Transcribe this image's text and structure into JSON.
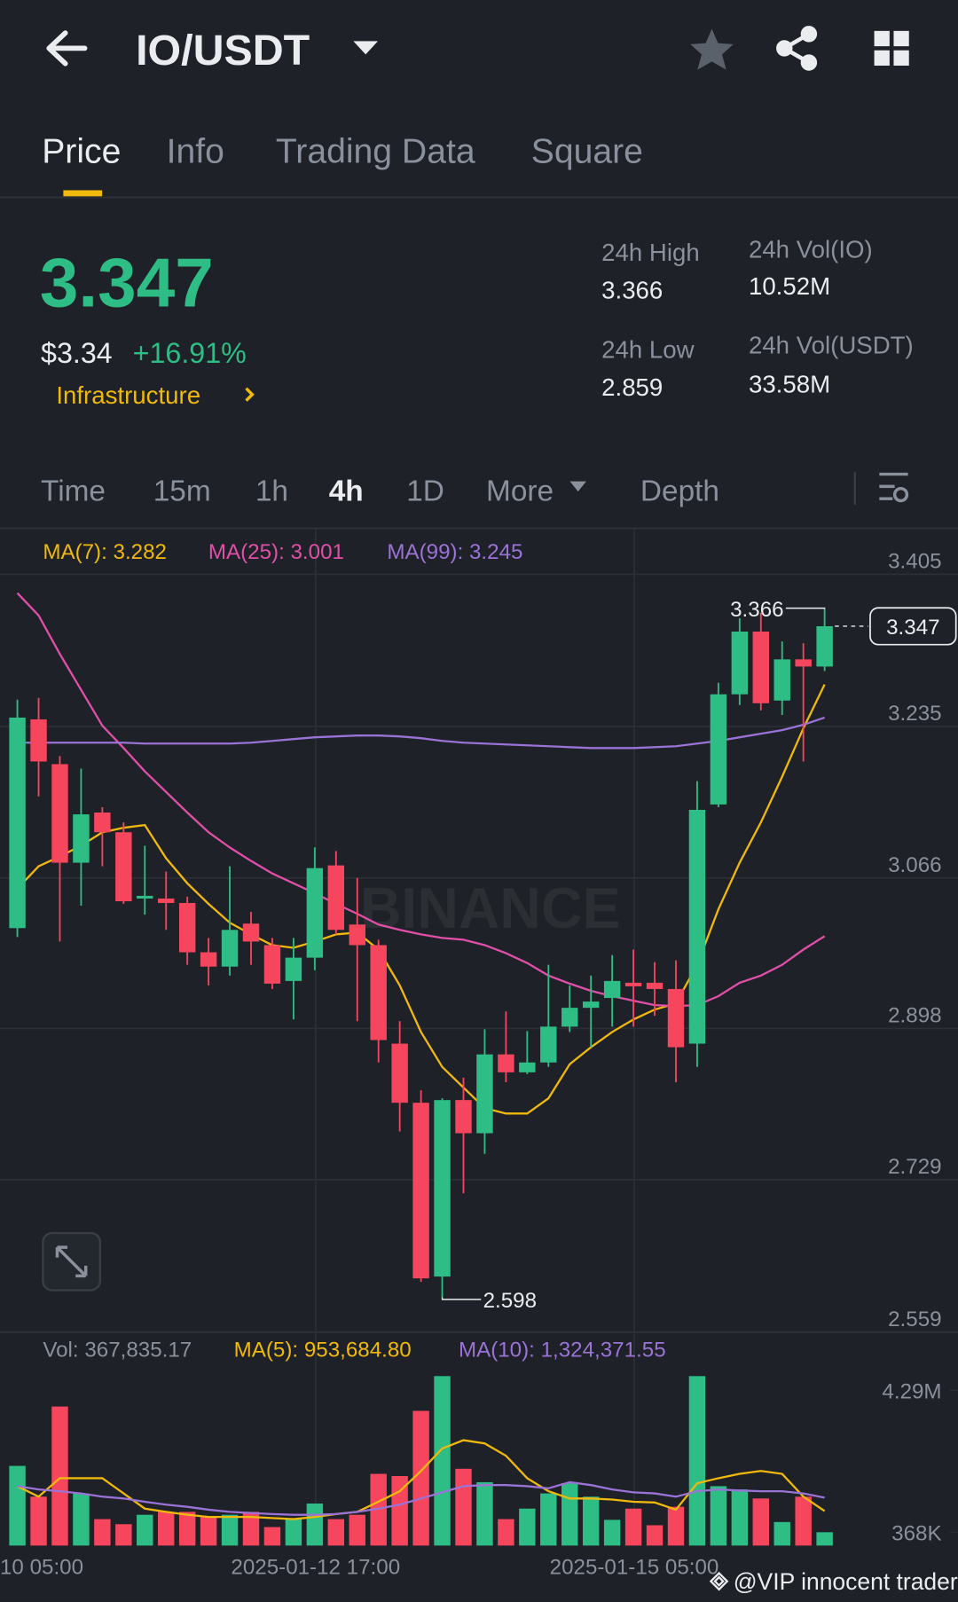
{
  "header": {
    "pair": "IO/USDT"
  },
  "tabs": [
    "Price",
    "Info",
    "Trading Data",
    "Square"
  ],
  "ticker": {
    "price": "3.347",
    "fiat": "$3.34",
    "change": "+16.91%",
    "sector": "Infrastructure"
  },
  "stats": [
    {
      "label": "24h High",
      "value": "3.366"
    },
    {
      "label": "24h Vol(IO)",
      "value": "10.52M"
    },
    {
      "label": "24h Low",
      "value": "2.859"
    },
    {
      "label": "24h Vol(USDT)",
      "value": "33.58M"
    }
  ],
  "intervals": [
    "Time",
    "15m",
    "1h",
    "4h",
    "1D",
    "More",
    "Depth"
  ],
  "watermark": "@VIP innocent trader",
  "chart_data": [
    {
      "type": "candlestick",
      "legend": [
        "MA(7): 3.282",
        "MA(25): 3.001",
        "MA(99): 3.245"
      ],
      "up_color": "#2ebd85",
      "down_color": "#f6465d",
      "grid": true,
      "ylim": [
        2.559,
        3.405
      ],
      "yticks": [
        3.405,
        3.235,
        3.066,
        2.898,
        2.729,
        2.559
      ],
      "open": [
        3.01,
        3.243,
        3.193,
        3.083,
        3.139,
        3.117,
        3.043,
        3.043,
        3.038,
        2.983,
        2.967,
        3.015,
        2.991,
        2.951,
        2.977,
        3.08,
        3.014,
        2.991,
        2.881,
        2.815,
        2.621,
        2.818,
        2.781,
        2.869,
        2.849,
        2.86,
        2.9,
        2.921,
        2.932,
        2.949,
        2.949,
        2.942,
        2.881,
        3.148,
        3.271,
        3.341,
        3.264,
        3.31,
        3.302
      ],
      "high": [
        3.265,
        3.267,
        3.202,
        3.188,
        3.145,
        3.128,
        3.102,
        3.073,
        3.045,
        2.999,
        3.079,
        3.028,
        2.999,
        2.999,
        3.1,
        3.096,
        3.066,
        2.997,
        2.906,
        2.829,
        2.82,
        2.843,
        2.897,
        2.917,
        2.895,
        2.969,
        2.946,
        2.957,
        2.98,
        2.986,
        2.972,
        2.974,
        3.174,
        3.284,
        3.356,
        3.362,
        3.33,
        3.328,
        3.366
      ],
      "low": [
        3.0,
        3.157,
        2.995,
        3.035,
        3.079,
        3.037,
        3.025,
        3.008,
        2.969,
        2.946,
        2.957,
        2.969,
        2.942,
        2.908,
        2.963,
        3.003,
        2.906,
        2.86,
        2.783,
        2.615,
        2.598,
        2.714,
        2.758,
        2.838,
        2.847,
        2.855,
        2.894,
        2.877,
        2.9,
        2.9,
        2.912,
        2.838,
        2.855,
        3.145,
        3.259,
        3.253,
        3.248,
        3.196,
        3.297
      ],
      "close": [
        3.245,
        3.196,
        3.083,
        3.137,
        3.117,
        3.04,
        3.046,
        3.038,
        2.983,
        2.967,
        3.008,
        2.995,
        2.948,
        2.977,
        3.077,
        3.008,
        2.991,
        2.885,
        2.815,
        2.619,
        2.818,
        2.781,
        2.869,
        2.849,
        2.86,
        2.9,
        2.921,
        2.928,
        2.951,
        2.945,
        2.942,
        2.877,
        3.142,
        3.271,
        3.341,
        3.261,
        3.31,
        3.302,
        3.347
      ],
      "ma_series": [
        {
          "color": "#f0b90b",
          "values": [
            3.054,
            3.079,
            3.09,
            3.102,
            3.117,
            3.122,
            3.125,
            3.088,
            3.06,
            3.037,
            3.016,
            3.003,
            2.991,
            2.988,
            2.995,
            3.003,
            3.005,
            2.986,
            2.946,
            2.894,
            2.855,
            2.832,
            2.809,
            2.803,
            2.803,
            2.82,
            2.858,
            2.877,
            2.894,
            2.908,
            2.919,
            2.926,
            2.969,
            3.031,
            3.083,
            3.128,
            3.179,
            3.233,
            3.282
          ]
        },
        {
          "color": "#e04fa8",
          "values": [
            3.384,
            3.359,
            3.316,
            3.276,
            3.236,
            3.211,
            3.185,
            3.162,
            3.139,
            3.117,
            3.1,
            3.085,
            3.071,
            3.06,
            3.049,
            3.037,
            3.026,
            3.014,
            3.008,
            3.003,
            2.999,
            2.997,
            2.991,
            2.982,
            2.971,
            2.957,
            2.948,
            2.94,
            2.934,
            2.929,
            2.924,
            2.923,
            2.924,
            2.934,
            2.949,
            2.957,
            2.969,
            2.986,
            3.001
          ]
        },
        {
          "color": "#9b72d6",
          "values": [
            3.217,
            3.217,
            3.217,
            3.217,
            3.217,
            3.217,
            3.216,
            3.216,
            3.216,
            3.216,
            3.216,
            3.217,
            3.219,
            3.221,
            3.223,
            3.224,
            3.225,
            3.225,
            3.224,
            3.222,
            3.219,
            3.217,
            3.216,
            3.215,
            3.214,
            3.213,
            3.212,
            3.211,
            3.211,
            3.211,
            3.212,
            3.213,
            3.216,
            3.219,
            3.223,
            3.227,
            3.231,
            3.237,
            3.245
          ]
        }
      ],
      "max_label": "3.366",
      "min_label": "2.598",
      "last_label": "3.347",
      "brand": "BINANCE"
    },
    {
      "type": "bar",
      "legend": [
        "Vol: 367,835.17",
        "MA(5): 953,684.80",
        "MA(10): 1,324,371.55"
      ],
      "ylim": [
        0,
        4.88
      ],
      "yticks": [
        {
          "value": 4.29,
          "label": "4.29M"
        },
        {
          "value": 0.368,
          "label": "368K"
        }
      ],
      "values": [
        2.2,
        1.35,
        3.84,
        1.44,
        0.73,
        0.59,
        0.85,
        0.93,
        0.93,
        0.79,
        0.85,
        0.93,
        0.51,
        0.73,
        1.16,
        0.73,
        0.85,
        1.98,
        1.92,
        3.72,
        4.68,
        2.12,
        1.75,
        0.73,
        1.02,
        1.44,
        1.72,
        1.35,
        0.71,
        1.02,
        0.56,
        1.07,
        4.68,
        1.64,
        1.55,
        1.3,
        0.65,
        1.35,
        0.368
      ],
      "ma_series": [
        {
          "color": "#f0b90b",
          "values": [
            1.64,
            1.35,
            1.86,
            1.86,
            1.86,
            1.44,
            1.02,
            0.93,
            0.85,
            0.79,
            0.79,
            0.79,
            0.76,
            0.73,
            0.79,
            0.87,
            0.93,
            1.21,
            1.5,
            2.06,
            2.68,
            2.91,
            2.82,
            2.48,
            1.86,
            1.5,
            1.3,
            1.3,
            1.27,
            1.21,
            1.19,
            0.99,
            1.72,
            1.86,
            1.98,
            2.06,
            1.98,
            1.35,
            0.954
          ]
        },
        {
          "color": "#9b72d6",
          "values": [
            1.64,
            1.55,
            1.5,
            1.44,
            1.35,
            1.3,
            1.21,
            1.13,
            1.07,
            0.99,
            0.93,
            0.9,
            0.87,
            0.85,
            0.85,
            0.87,
            0.93,
            1.02,
            1.13,
            1.3,
            1.47,
            1.64,
            1.67,
            1.67,
            1.64,
            1.58,
            1.75,
            1.67,
            1.55,
            1.47,
            1.44,
            1.35,
            1.5,
            1.55,
            1.52,
            1.5,
            1.5,
            1.44,
            1.324
          ]
        }
      ],
      "x_labels": [
        "10 05:00",
        "2025-01-12 17:00",
        "2025-01-15 05:00"
      ]
    }
  ]
}
